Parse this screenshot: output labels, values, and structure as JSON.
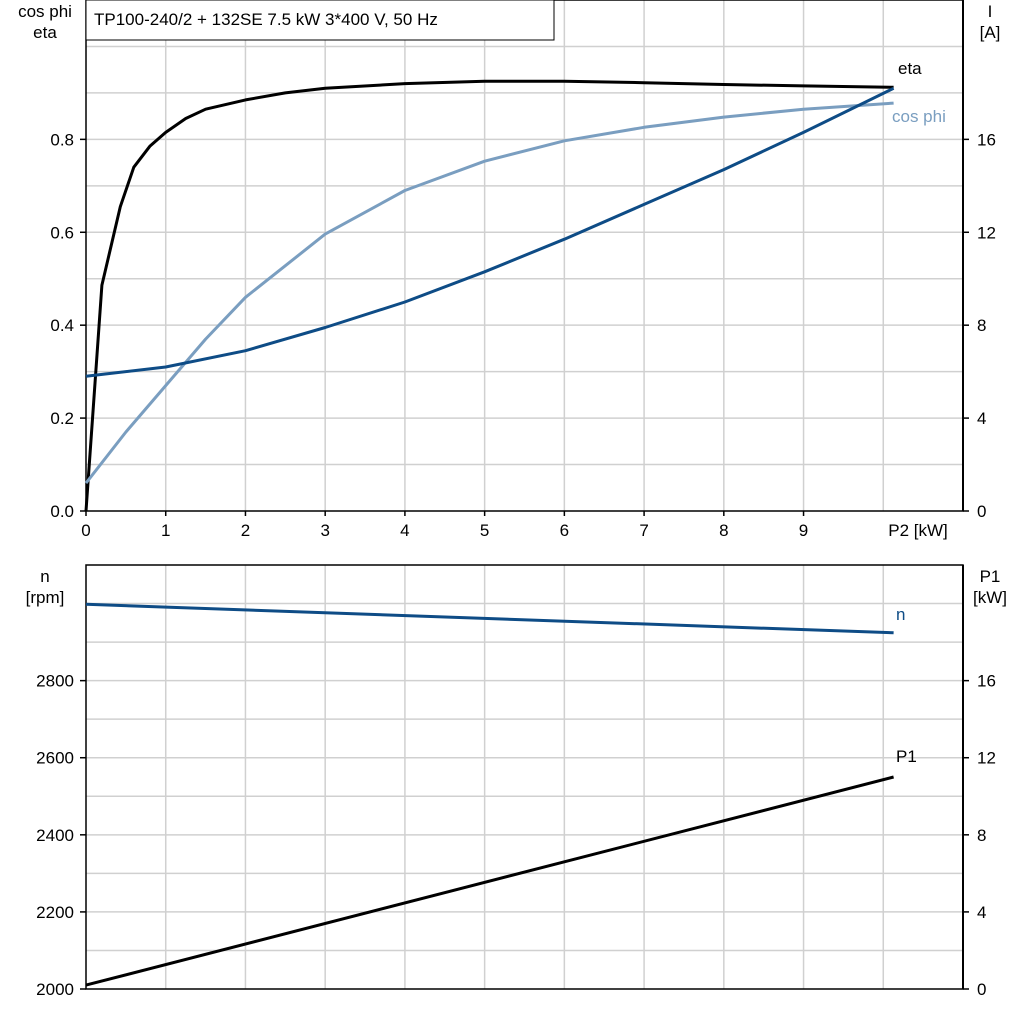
{
  "chart_data": [
    {
      "type": "line",
      "title": "TP100-240/2 + 132SE   7.5 kW   3*400 V, 50 Hz",
      "xlabel": "P2 [kW]",
      "ylabel_left": [
        "cos phi",
        "eta"
      ],
      "ylabel_right": [
        "I",
        "[A]"
      ],
      "xlim": [
        0,
        11
      ],
      "ylim_left": [
        0,
        1.1
      ],
      "ylim_right": [
        0,
        22
      ],
      "x_ticks": [
        0,
        1,
        2,
        3,
        4,
        5,
        6,
        7,
        8,
        9
      ],
      "y_ticks_left": [
        "0.0",
        "0.2",
        "0.4",
        "0.6",
        "0.8"
      ],
      "y_ticks_right": [
        "0",
        "4",
        "8",
        "12",
        "16"
      ],
      "grid": true,
      "series": [
        {
          "name": "eta",
          "axis": "left",
          "color": "#000000",
          "x": [
            0,
            0.2,
            0.43,
            0.6,
            0.8,
            1,
            1.25,
            1.5,
            2,
            2.5,
            3,
            4,
            5,
            6,
            7,
            8,
            9,
            10.13
          ],
          "y": [
            0,
            0.486,
            0.655,
            0.74,
            0.785,
            0.815,
            0.845,
            0.865,
            0.885,
            0.9,
            0.91,
            0.92,
            0.925,
            0.925,
            0.922,
            0.918,
            0.915,
            0.912
          ]
        },
        {
          "name": "cos phi",
          "axis": "left",
          "color": "#7a9ec0",
          "x": [
            0,
            0.5,
            1,
            1.5,
            2,
            3,
            4,
            5,
            6,
            7,
            8,
            9,
            10.13
          ],
          "y": [
            0.06,
            0.17,
            0.27,
            0.37,
            0.46,
            0.596,
            0.69,
            0.753,
            0.797,
            0.826,
            0.848,
            0.865,
            0.878
          ]
        },
        {
          "name": "I",
          "axis": "right",
          "color": "#0e4c86",
          "x": [
            0,
            1,
            2,
            3,
            4,
            5,
            6,
            7,
            8,
            9,
            10.13
          ],
          "y": [
            5.8,
            6.2,
            6.9,
            7.9,
            9.0,
            10.3,
            11.7,
            13.2,
            14.7,
            16.3,
            18.2
          ]
        }
      ]
    },
    {
      "type": "line",
      "xlim": [
        0,
        11
      ],
      "ylabel_left": [
        "n",
        "[rpm]"
      ],
      "ylabel_right": [
        "P1",
        "[kW]"
      ],
      "ylim_left": [
        2000,
        3100
      ],
      "ylim_right": [
        0,
        22
      ],
      "y_ticks_left": [
        "2000",
        "2200",
        "2400",
        "2600",
        "2800"
      ],
      "y_ticks_right": [
        "0",
        "4",
        "8",
        "12",
        "16"
      ],
      "grid": true,
      "series": [
        {
          "name": "n",
          "axis": "left",
          "color": "#0e4c86",
          "x": [
            0,
            10.13
          ],
          "y": [
            2998,
            2924
          ]
        },
        {
          "name": "P1",
          "axis": "right",
          "color": "#000000",
          "x": [
            0,
            10.13
          ],
          "y": [
            0.2,
            11.0
          ]
        }
      ]
    }
  ]
}
